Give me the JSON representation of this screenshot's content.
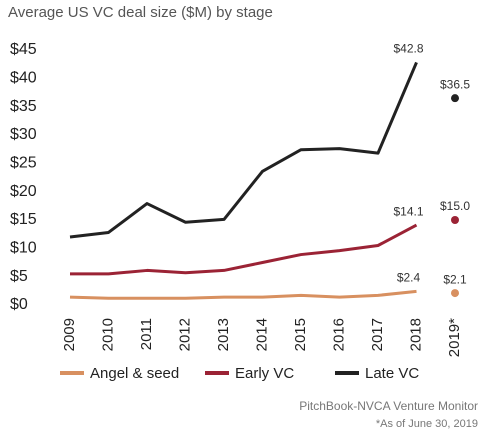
{
  "chart_data": {
    "type": "line",
    "title": "Average US VC deal size ($M) by stage",
    "categories": [
      "2009",
      "2010",
      "2011",
      "2012",
      "2013",
      "2014",
      "2015",
      "2016",
      "2017",
      "2018",
      "2019*"
    ],
    "series": [
      {
        "name": "Angel & seed",
        "color": "#d89060",
        "values": [
          1.4,
          1.2,
          1.2,
          1.2,
          1.4,
          1.4,
          1.7,
          1.4,
          1.7,
          2.4,
          2.1
        ],
        "value_labels": [
          null,
          null,
          null,
          null,
          null,
          null,
          null,
          null,
          null,
          "$2.4",
          "$2.1"
        ]
      },
      {
        "name": "Early VC",
        "color": "#9b2335",
        "values": [
          5.5,
          5.5,
          6.1,
          5.7,
          6.1,
          7.5,
          8.9,
          9.6,
          10.5,
          14.1,
          15.0
        ],
        "value_labels": [
          null,
          null,
          null,
          null,
          null,
          null,
          null,
          null,
          null,
          "$14.1",
          "$15.0"
        ]
      },
      {
        "name": "Late VC",
        "color": "#222222",
        "values": [
          12.0,
          12.8,
          17.9,
          14.6,
          15.1,
          23.6,
          27.4,
          27.6,
          26.8,
          42.8,
          36.5
        ],
        "value_labels": [
          null,
          null,
          null,
          null,
          null,
          null,
          null,
          null,
          null,
          "$42.8",
          "$36.5"
        ]
      }
    ],
    "ylim": [
      0,
      45
    ],
    "yticks": [
      {
        "value": 0,
        "label": "$0"
      },
      {
        "value": 5,
        "label": "$5"
      },
      {
        "value": 10,
        "label": "$10"
      },
      {
        "value": 15,
        "label": "$15"
      },
      {
        "value": 20,
        "label": "$20"
      },
      {
        "value": 25,
        "label": "$25"
      },
      {
        "value": 30,
        "label": "$30"
      },
      {
        "value": 35,
        "label": "$35"
      },
      {
        "value": 40,
        "label": "$40"
      },
      {
        "value": 45,
        "label": "$45"
      }
    ],
    "grid": false,
    "source": "PitchBook-NVCA Venture Monitor",
    "note": "*As of June 30, 2019"
  }
}
